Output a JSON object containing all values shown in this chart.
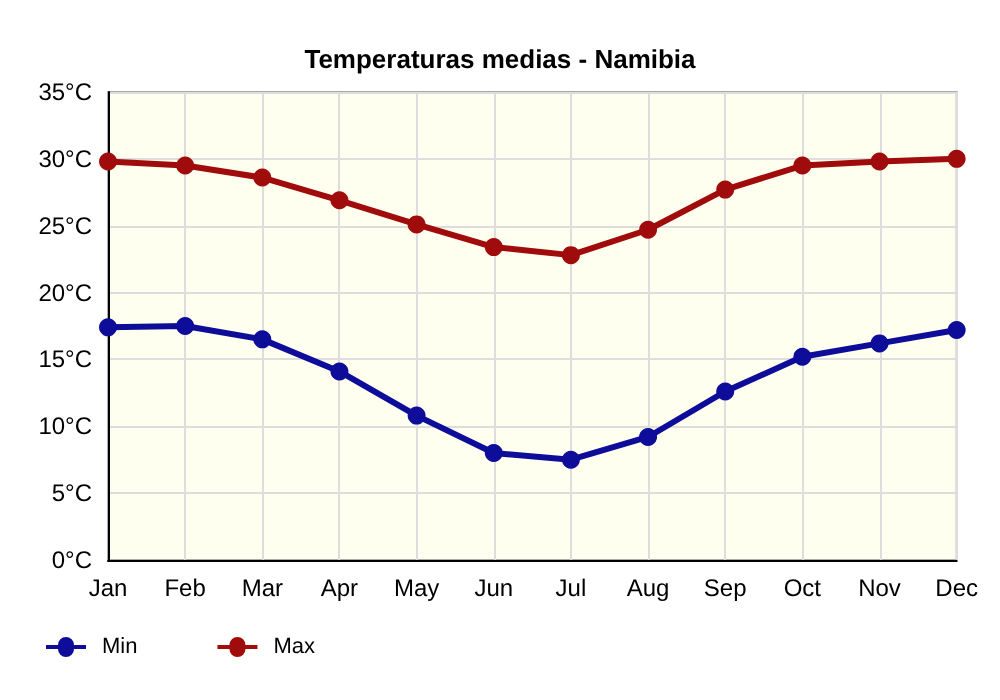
{
  "chart_data": {
    "type": "line",
    "title": "Temperaturas medias - Namibia",
    "categories": [
      "Jan",
      "Feb",
      "Mar",
      "Apr",
      "May",
      "Jun",
      "Jul",
      "Aug",
      "Sep",
      "Oct",
      "Nov",
      "Dec"
    ],
    "series": [
      {
        "name": "Min",
        "color": "#0d0d99",
        "values": [
          17.4,
          17.5,
          16.5,
          14.1,
          10.8,
          8,
          7.5,
          9.2,
          12.6,
          15.2,
          16.2,
          17.2
        ]
      },
      {
        "name": "Max",
        "color": "#a00b0b",
        "values": [
          29.8,
          29.5,
          28.6,
          26.9,
          25.1,
          23.4,
          22.8,
          24.7,
          27.7,
          29.5,
          29.8,
          30
        ]
      }
    ],
    "ylim": [
      0,
      35
    ],
    "yticks": [
      {
        "value": 0,
        "label": "0°C"
      },
      {
        "value": 5,
        "label": "5°C"
      },
      {
        "value": 10,
        "label": "10°C"
      },
      {
        "value": 15,
        "label": "15°C"
      },
      {
        "value": 20,
        "label": "20°C"
      },
      {
        "value": 25,
        "label": "25°C"
      },
      {
        "value": 30,
        "label": "30°C"
      },
      {
        "value": 35,
        "label": "35°C"
      }
    ],
    "grid": true,
    "legend": "bottom left",
    "marker": "circle",
    "line_style": "solid"
  }
}
